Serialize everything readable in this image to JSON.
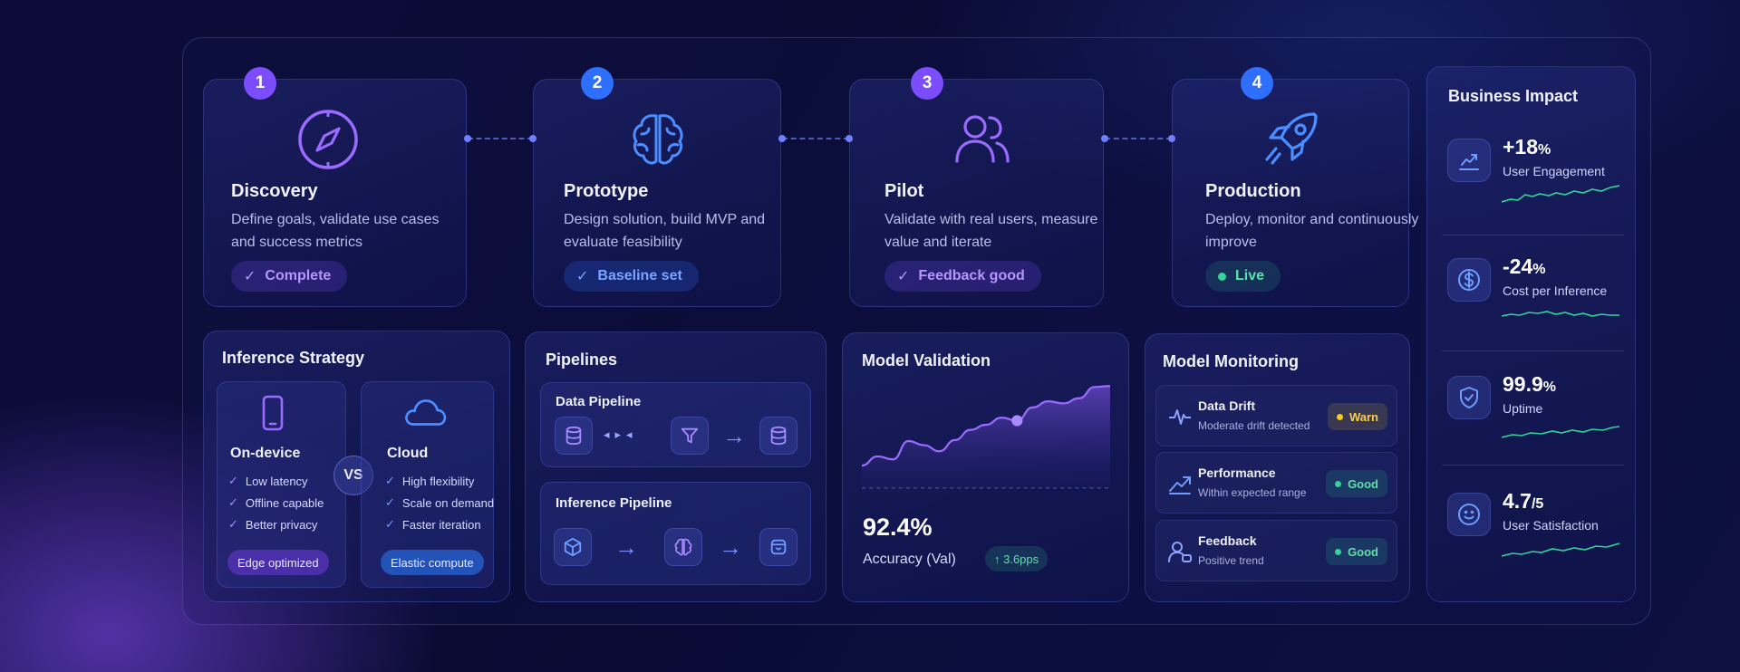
{
  "stages": [
    {
      "num": "1",
      "title": "Discovery",
      "desc": "Define goals, validate use cases and success metrics",
      "status": "Complete",
      "icon": "compass-icon",
      "color": "#8b5cf6"
    },
    {
      "num": "2",
      "title": "Prototype",
      "desc": "Design solution, build MVP and evaluate feasibility",
      "status": "Baseline set",
      "icon": "brain-icon",
      "color": "#3b82f6"
    },
    {
      "num": "3",
      "title": "Pilot",
      "desc": "Validate with real users, measure value and iterate",
      "status": "Feedback good",
      "icon": "users-icon",
      "color": "#8b5cf6"
    },
    {
      "num": "4",
      "title": "Production",
      "desc": "Deploy, monitor and continuously improve",
      "status": "Live",
      "icon": "rocket-icon",
      "color": "#3b82f6"
    }
  ],
  "inference": {
    "title": "Inference Strategy",
    "vs": "VS",
    "ondevice": {
      "title": "On-device",
      "items": [
        "Low latency",
        "Offline capable",
        "Better privacy"
      ],
      "tag": "Edge optimized",
      "icon": "phone-icon"
    },
    "cloud": {
      "title": "Cloud",
      "items": [
        "High flexibility",
        "Scale on demand",
        "Faster iteration"
      ],
      "tag": "Elastic compute",
      "icon": "cloud-icon"
    }
  },
  "pipelines": {
    "title": "Pipelines",
    "data": {
      "title": "Data Pipeline",
      "icons": [
        "database-icon",
        "filter-icon",
        "database-icon"
      ]
    },
    "inference": {
      "title": "Inference Pipeline",
      "icons": [
        "cube-icon",
        "brain-icon",
        "box-icon"
      ]
    }
  },
  "validation": {
    "title": "Model Validation",
    "value": "92.4%",
    "label": "Accuracy (Val)",
    "delta": "↑ 3.6pps",
    "chart_data": {
      "type": "area",
      "y": [
        22,
        31,
        28,
        46,
        42,
        36,
        47,
        57,
        62,
        69,
        66,
        79,
        85,
        83,
        88,
        99,
        100
      ],
      "highlight_index": 10,
      "title": "",
      "xlabel": "",
      "ylabel": ""
    }
  },
  "monitoring": {
    "title": "Model Monitoring",
    "rows": [
      {
        "title": "Data Drift",
        "sub": "Moderate drift detected",
        "badge": "Warn",
        "badge_color": "#facc15",
        "icon": "pulse-icon"
      },
      {
        "title": "Performance",
        "sub": "Within expected range",
        "badge": "Good",
        "badge_color": "#34d399",
        "icon": "trend-up-icon"
      },
      {
        "title": "Feedback",
        "sub": "Positive trend",
        "badge": "Good",
        "badge_color": "#34d399",
        "icon": "user-feedback-icon"
      }
    ]
  },
  "impact": {
    "title": "Business Impact",
    "rows": [
      {
        "value": "+18",
        "unit": "%",
        "label": "User Engagement",
        "icon": "chart-up-icon"
      },
      {
        "value": "-24",
        "unit": "%",
        "label": "Cost per Inference",
        "icon": "dollar-icon"
      },
      {
        "value": "99.9",
        "unit": "%",
        "label": "Uptime",
        "icon": "shield-icon"
      },
      {
        "value": "4.7",
        "unit": "/5",
        "label": "User Satisfaction",
        "icon": "smile-icon"
      }
    ]
  },
  "colors": {
    "violet": "#8b5cf6",
    "blue": "#3b82f6",
    "green": "#34d399",
    "yellow": "#facc15"
  }
}
